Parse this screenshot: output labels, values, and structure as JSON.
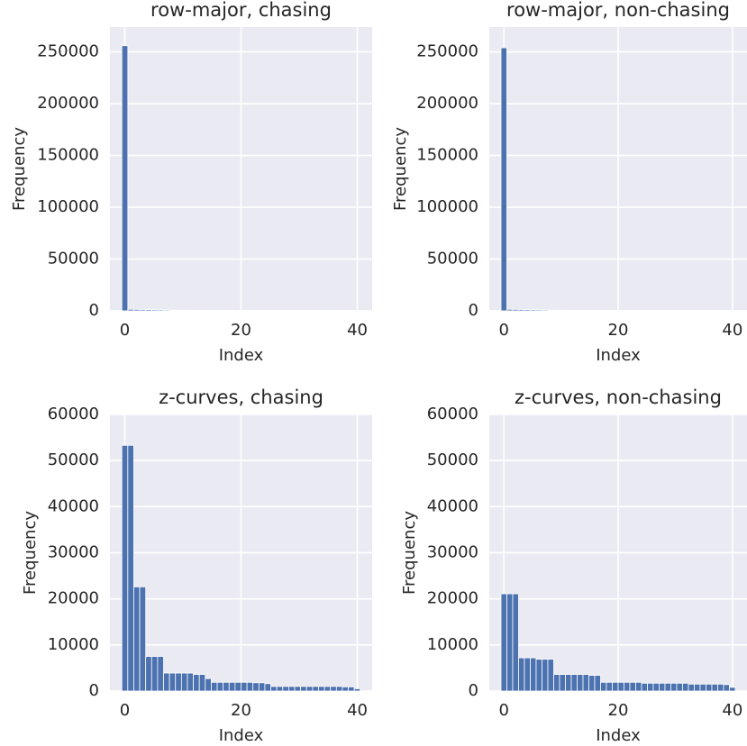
{
  "chart_data": [
    {
      "type": "histogram",
      "title": "row-major, chasing",
      "x_label": "Index",
      "y_label": "Frequency",
      "bins": [
        -0.5,
        0.525,
        1.55,
        2.575,
        3.6,
        4.625,
        5.65,
        6.675,
        7.7,
        8.725,
        9.75,
        10.775,
        11.8,
        12.825,
        13.85,
        14.875,
        15.9,
        16.925,
        17.95,
        18.975,
        20,
        21.025,
        22.05,
        23.075,
        24.1,
        25.125,
        26.15,
        27.175,
        28.2,
        29.225,
        30.25,
        31.275,
        32.3,
        33.325,
        34.35,
        35.375,
        36.4,
        37.425,
        38.45,
        39.475,
        40.5
      ],
      "values": [
        256000,
        1500,
        1400,
        1300,
        1200,
        1100,
        1000,
        900,
        700,
        600,
        600,
        500,
        500,
        500,
        500,
        500,
        500,
        500,
        500,
        500,
        500,
        500,
        500,
        500,
        500,
        500,
        500,
        500,
        500,
        500,
        500,
        500,
        500,
        500,
        500,
        500,
        500,
        500,
        500,
        300
      ],
      "color": "#4c72b0",
      "xlim": [
        -2.55,
        42.55
      ],
      "ylim": [
        0,
        274000
      ],
      "xticks": [
        0,
        20,
        40
      ],
      "yticks": [
        0,
        50000,
        100000,
        150000,
        200000,
        250000
      ],
      "grid": true
    },
    {
      "type": "histogram",
      "title": "row-major, non-chasing",
      "x_label": "Index",
      "y_label": "Frequency",
      "bins": [
        -0.5,
        0.525,
        1.55,
        2.575,
        3.6,
        4.625,
        5.65,
        6.675,
        7.7,
        8.725,
        9.75,
        10.775,
        11.8,
        12.825,
        13.85,
        14.875,
        15.9,
        16.925,
        17.95,
        18.975,
        20,
        21.025,
        22.05,
        23.075,
        24.1,
        25.125,
        26.15,
        27.175,
        28.2,
        29.225,
        30.25,
        31.275,
        32.3,
        33.325,
        34.35,
        35.375,
        36.4,
        37.425,
        38.45,
        39.475,
        40.5
      ],
      "values": [
        254000,
        1500,
        1400,
        1300,
        1200,
        1100,
        1000,
        900,
        700,
        600,
        600,
        500,
        500,
        500,
        500,
        500,
        500,
        500,
        500,
        500,
        500,
        500,
        500,
        500,
        500,
        500,
        500,
        500,
        500,
        500,
        500,
        500,
        500,
        500,
        500,
        500,
        500,
        500,
        500,
        300
      ],
      "color": "#4c72b0",
      "xlim": [
        -2.55,
        42.55
      ],
      "ylim": [
        0,
        274000
      ],
      "xticks": [
        0,
        20,
        40
      ],
      "yticks": [
        0,
        50000,
        100000,
        150000,
        200000,
        250000
      ],
      "grid": true
    },
    {
      "type": "histogram",
      "title": "z-curves, chasing",
      "x_label": "Index",
      "y_label": "Frequency",
      "bins": [
        -0.5,
        0.525,
        1.55,
        2.575,
        3.6,
        4.625,
        5.65,
        6.675,
        7.7,
        8.725,
        9.75,
        10.775,
        11.8,
        12.825,
        13.85,
        14.875,
        15.9,
        16.925,
        17.95,
        18.975,
        20,
        21.025,
        22.05,
        23.075,
        24.1,
        25.125,
        26.15,
        27.175,
        28.2,
        29.225,
        30.25,
        31.275,
        32.3,
        33.325,
        34.35,
        35.375,
        36.4,
        37.425,
        38.45,
        39.475,
        40.5
      ],
      "values": [
        53300,
        53300,
        22600,
        22600,
        7500,
        7500,
        7500,
        3900,
        3900,
        3900,
        3900,
        3900,
        3600,
        3600,
        2700,
        1900,
        1900,
        1900,
        1900,
        1900,
        1900,
        1900,
        1800,
        1800,
        1600,
        1000,
        1000,
        1000,
        1000,
        1000,
        1000,
        1000,
        1000,
        1000,
        1000,
        1000,
        1000,
        900,
        900,
        500
      ],
      "color": "#4c72b0",
      "xlim": [
        -2.55,
        42.55
      ],
      "ylim": [
        0,
        60000
      ],
      "xticks": [
        0,
        20,
        40
      ],
      "yticks": [
        0,
        10000,
        20000,
        30000,
        40000,
        50000,
        60000
      ],
      "grid": true
    },
    {
      "type": "histogram",
      "title": "z-curves, non-chasing",
      "x_label": "Index",
      "y_label": "Frequency",
      "bins": [
        -0.5,
        0.525,
        1.55,
        2.575,
        3.6,
        4.625,
        5.65,
        6.675,
        7.7,
        8.725,
        9.75,
        10.775,
        11.8,
        12.825,
        13.85,
        14.875,
        15.9,
        16.925,
        17.95,
        18.975,
        20,
        21.025,
        22.05,
        23.075,
        24.1,
        25.125,
        26.15,
        27.175,
        28.2,
        29.225,
        30.25,
        31.275,
        32.3,
        33.325,
        34.35,
        35.375,
        36.4,
        37.425,
        38.45,
        39.475,
        40.5
      ],
      "values": [
        21100,
        21100,
        21100,
        7200,
        7200,
        7200,
        6900,
        6900,
        6900,
        3600,
        3600,
        3600,
        3600,
        3600,
        3600,
        3400,
        3400,
        1900,
        1900,
        1900,
        1900,
        1900,
        1900,
        1900,
        1700,
        1700,
        1700,
        1700,
        1700,
        1700,
        1700,
        1700,
        1500,
        1500,
        1500,
        1500,
        1500,
        1500,
        1400,
        800
      ],
      "color": "#4c72b0",
      "xlim": [
        -2.55,
        42.55
      ],
      "ylim": [
        0,
        60000
      ],
      "xticks": [
        0,
        20,
        40
      ],
      "yticks": [
        0,
        10000,
        20000,
        30000,
        40000,
        50000,
        60000
      ],
      "grid": true
    }
  ]
}
